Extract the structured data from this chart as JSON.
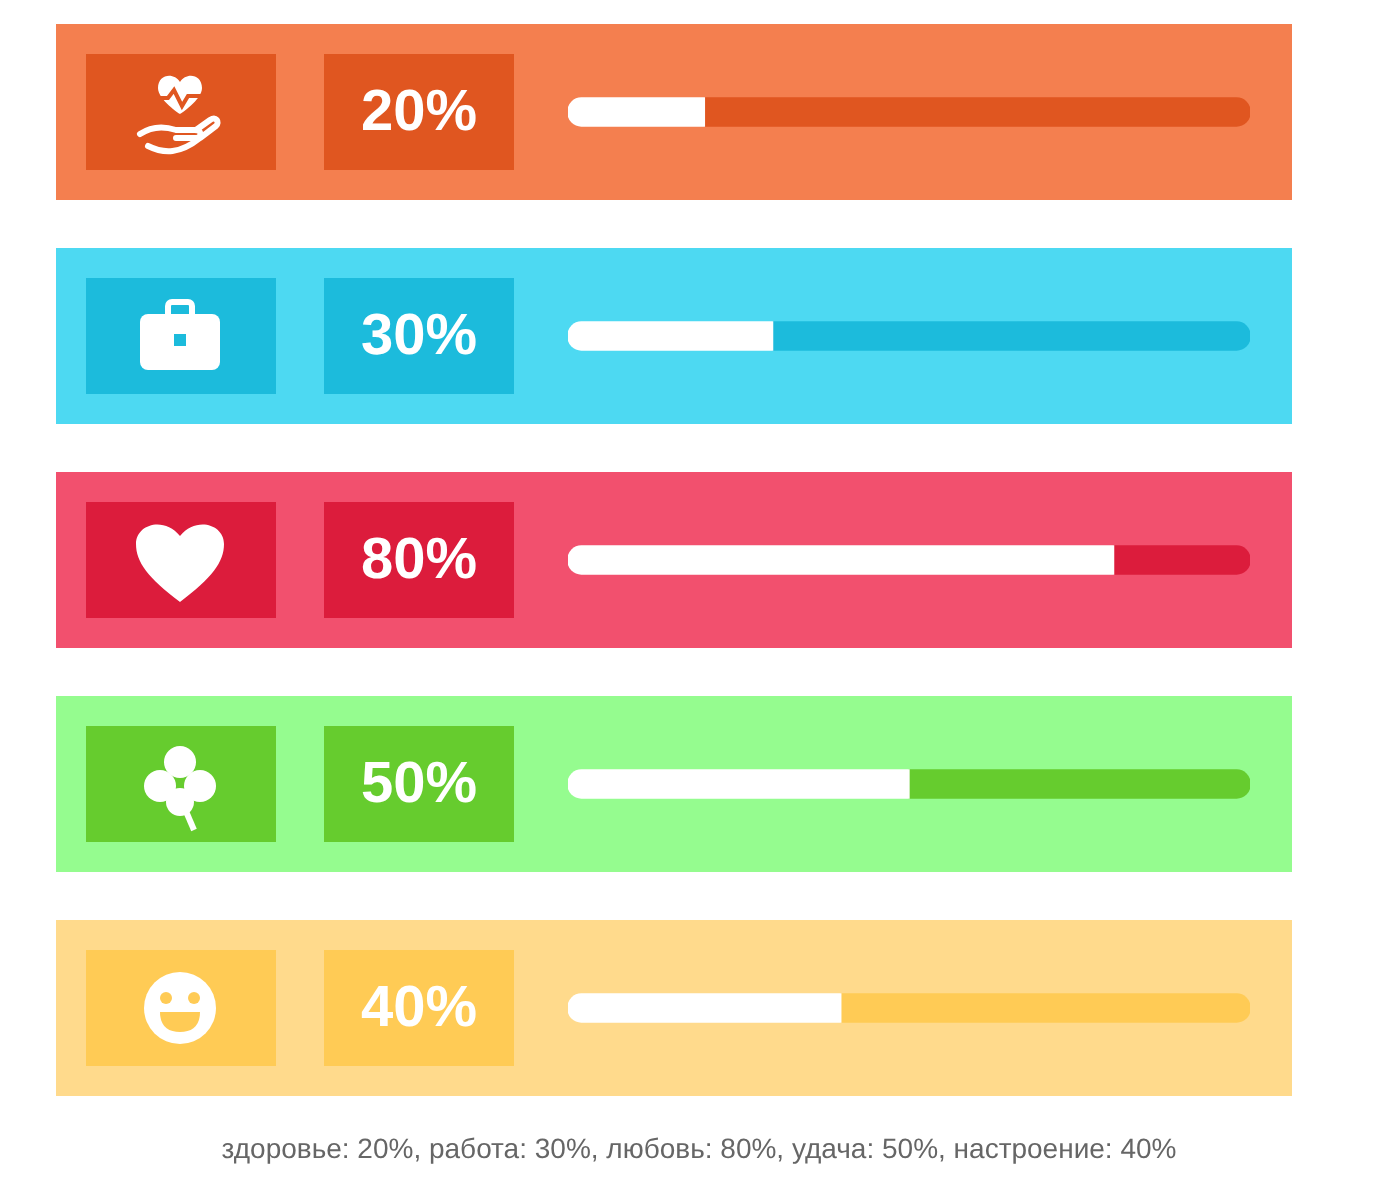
{
  "chart_data": {
    "type": "bar",
    "orientation": "horizontal",
    "stacked": true,
    "categories": [
      null,
      null,
      null,
      null,
      null
    ],
    "series": [
      {
        "values": [
          20,
          30,
          80,
          50,
          40
        ],
        "colors": [
          "#ffffff",
          "#ffffff",
          "#ffffff",
          "#ffffff",
          "#ffffff"
        ],
        "value_labels": [
          "20%",
          "30%",
          "80%",
          "50%",
          "40%"
        ]
      },
      {
        "values": [
          80,
          70,
          20,
          50,
          60
        ],
        "colors": [
          "#e05620",
          "#1cbbdc",
          "#dc1c3c",
          "#66cc2e",
          "#ffcb55"
        ]
      }
    ],
    "xlim": [
      0,
      100
    ],
    "tick_labels": false,
    "annotations": [
      "здоровье: 20%, работа: 30%, любовь: 80%, удача: 50%, настроение: 40%"
    ]
  }
}
